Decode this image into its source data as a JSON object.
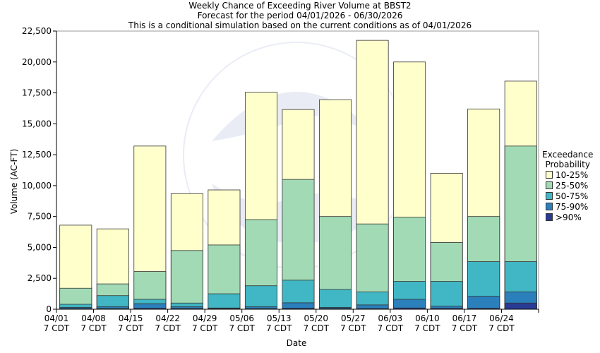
{
  "chart_data": {
    "type": "bar",
    "title": [
      "Weekly Chance of Exceeding River Volume at BBST2",
      "Forecast for the period 04/01/2026 - 06/30/2026",
      "This is a conditional simulation based on the current conditions as of 04/01/2026"
    ],
    "xlabel": "Date",
    "ylabel": "Volume (AC-FT)",
    "ylim": [
      0,
      22500
    ],
    "yticks": [
      "0",
      "2,500",
      "5,000",
      "7,500",
      "10,000",
      "12,500",
      "15,000",
      "17,500",
      "20,000",
      "22,500"
    ],
    "categories": [
      "04/01",
      "04/08",
      "04/15",
      "04/22",
      "04/29",
      "05/06",
      "05/13",
      "05/20",
      "05/27",
      "06/03",
      "06/10",
      "06/17",
      "06/24"
    ],
    "category_suffix": "7 CDT",
    "legend_title": [
      "Exceedance",
      "Probability"
    ],
    "series": [
      {
        "name": ">90%",
        "color": "#2a3b93",
        "values": [
          50,
          50,
          80,
          60,
          50,
          50,
          80,
          60,
          50,
          100,
          70,
          80,
          500
        ]
      },
      {
        "name": "75-90%",
        "color": "#2b7fba",
        "values": [
          150,
          200,
          450,
          200,
          100,
          200,
          520,
          150,
          350,
          800,
          250,
          1050,
          1400
        ]
      },
      {
        "name": "50-75%",
        "color": "#41b6c4",
        "values": [
          400,
          1100,
          800,
          500,
          1250,
          1900,
          2350,
          1600,
          1400,
          2250,
          2250,
          3850,
          3850
        ]
      },
      {
        "name": "25-50%",
        "color": "#a1dab4",
        "values": [
          1700,
          2050,
          3050,
          4750,
          5200,
          7250,
          10500,
          7500,
          6900,
          7450,
          5400,
          7500,
          13200
        ]
      },
      {
        "name": "10-25%",
        "color": "#ffffcc",
        "values": [
          6800,
          6500,
          13200,
          9350,
          9650,
          17550,
          16150,
          16950,
          21750,
          20000,
          11000,
          16200,
          18450
        ]
      }
    ],
    "grid": false,
    "legend_position": "right"
  }
}
